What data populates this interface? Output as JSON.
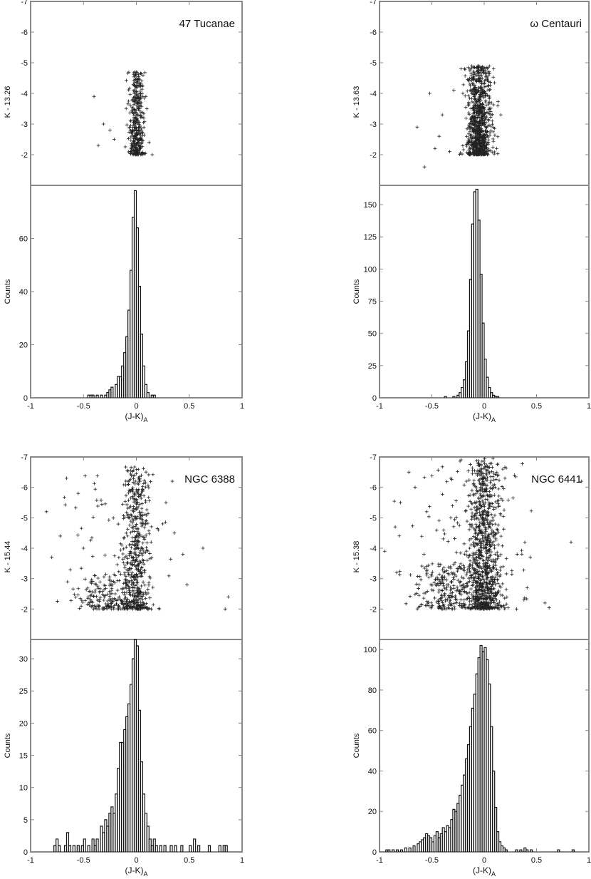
{
  "chart_data": [
    {
      "type": "scatter",
      "panel": "cmd",
      "title": "47 Tucanae",
      "ylabel": "K - 13.26",
      "xlim": [
        -1,
        1
      ],
      "ylim": [
        -1.0,
        -7.0
      ],
      "y_ticks": [
        -2,
        -3,
        -4,
        -5,
        -6,
        -7
      ],
      "y_tick_labels": [
        "-2",
        "-3",
        "-4",
        "-5",
        "-6",
        "-7"
      ],
      "marker": "+",
      "color": "#222222",
      "points_description": "dense vertical sequence near (J-K)A = 0 from K offset -2 to -4.7, with a few outliers at (-0.40,-3.9),(-0.36,-2.3),(-0.25,-2.8),(0.15,-2.0)",
      "outliers": [
        [
          -0.4,
          -3.9
        ],
        [
          -0.36,
          -2.3
        ],
        [
          -0.31,
          -3.0
        ],
        [
          -0.25,
          -2.8
        ],
        [
          -0.21,
          -2.5
        ],
        [
          0.15,
          -2.0
        ],
        [
          0.12,
          -2.4
        ],
        [
          0.09,
          -3.9
        ]
      ]
    },
    {
      "type": "bar",
      "panel": "hist",
      "xlabel": "(J-K)",
      "xlabel_sub": "A",
      "ylabel": "Counts",
      "xlim": [
        -1,
        1
      ],
      "ylim": [
        0,
        80
      ],
      "x_ticks": [
        -1,
        -0.5,
        0,
        0.5,
        1
      ],
      "x_tick_labels": [
        "-1",
        "-0.5",
        "0",
        "0.5",
        "1"
      ],
      "y_ticks": [
        0,
        20,
        40,
        60
      ],
      "y_tick_labels": [
        "0",
        "20",
        "40",
        "60"
      ],
      "bin_width": 0.02,
      "bins": [
        [
          -0.45,
          1
        ],
        [
          -0.43,
          1
        ],
        [
          -0.41,
          1
        ],
        [
          -0.37,
          1
        ],
        [
          -0.33,
          1
        ],
        [
          -0.29,
          1
        ],
        [
          -0.27,
          2
        ],
        [
          -0.25,
          3
        ],
        [
          -0.23,
          4
        ],
        [
          -0.19,
          5
        ],
        [
          -0.17,
          8
        ],
        [
          -0.15,
          8
        ],
        [
          -0.13,
          12
        ],
        [
          -0.11,
          17
        ],
        [
          -0.09,
          23
        ],
        [
          -0.07,
          33
        ],
        [
          -0.05,
          48
        ],
        [
          -0.03,
          68
        ],
        [
          -0.01,
          78
        ],
        [
          0.01,
          64
        ],
        [
          0.03,
          42
        ],
        [
          0.05,
          24
        ],
        [
          0.07,
          12
        ],
        [
          0.09,
          5
        ],
        [
          0.11,
          2
        ],
        [
          0.15,
          1
        ],
        [
          0.17,
          1
        ]
      ]
    },
    {
      "type": "scatter",
      "panel": "cmd",
      "title": "ω Centauri",
      "ylabel": "K - 13.63",
      "xlim": [
        -1,
        1
      ],
      "ylim": [
        -1.0,
        -7.0
      ],
      "y_ticks": [
        -2,
        -3,
        -4,
        -5,
        -6,
        -7
      ],
      "y_tick_labels": [
        "-2",
        "-3",
        "-4",
        "-5",
        "-6",
        "-7"
      ],
      "marker": "+",
      "color": "#222222",
      "points_description": "very dense vertical sequence near (J-K)A = -0.05 from K offset -2 to -4.9, a few outliers to the blue and red",
      "outliers": [
        [
          -0.64,
          -2.9
        ],
        [
          -0.52,
          -4.0
        ],
        [
          -0.47,
          -2.2
        ],
        [
          -0.43,
          -2.6
        ],
        [
          -0.4,
          -3.3
        ],
        [
          -0.33,
          -2.1
        ],
        [
          -0.29,
          -4.1
        ],
        [
          -0.57,
          -1.6
        ],
        [
          0.09,
          -4.8
        ],
        [
          0.16,
          -3.3
        ],
        [
          0.12,
          -2.2
        ]
      ]
    },
    {
      "type": "bar",
      "panel": "hist",
      "xlabel": "(J-K)",
      "xlabel_sub": "A",
      "ylabel": "Counts",
      "xlim": [
        -1,
        1
      ],
      "ylim": [
        0,
        165
      ],
      "x_ticks": [
        -1,
        -0.5,
        0,
        0.5,
        1
      ],
      "x_tick_labels": [
        "-1",
        "-0.5",
        "0",
        "0.5",
        "1"
      ],
      "y_ticks": [
        0,
        25,
        50,
        75,
        100,
        125,
        150
      ],
      "y_tick_labels": [
        "0",
        "25",
        "50",
        "75",
        "100",
        "125",
        "150"
      ],
      "bin_width": 0.02,
      "bins": [
        [
          -0.37,
          1
        ],
        [
          -0.29,
          1
        ],
        [
          -0.25,
          2
        ],
        [
          -0.23,
          4
        ],
        [
          -0.21,
          8
        ],
        [
          -0.19,
          14
        ],
        [
          -0.17,
          28
        ],
        [
          -0.15,
          52
        ],
        [
          -0.13,
          92
        ],
        [
          -0.11,
          135
        ],
        [
          -0.09,
          160
        ],
        [
          -0.07,
          162
        ],
        [
          -0.05,
          138
        ],
        [
          -0.03,
          96
        ],
        [
          -0.01,
          58
        ],
        [
          0.01,
          30
        ],
        [
          0.03,
          16
        ],
        [
          0.05,
          8
        ],
        [
          0.07,
          4
        ],
        [
          0.09,
          2
        ],
        [
          0.11,
          1
        ],
        [
          0.13,
          1
        ]
      ]
    },
    {
      "type": "scatter",
      "panel": "cmd",
      "title": "NGC 6388",
      "ylabel": "K - 15.44",
      "xlim": [
        -1,
        1
      ],
      "ylim": [
        -1.0,
        -7.0
      ],
      "y_ticks": [
        -2,
        -3,
        -4,
        -5,
        -6,
        -7
      ],
      "y_tick_labels": [
        "-2",
        "-3",
        "-4",
        "-5",
        "-6",
        "-7"
      ],
      "marker": "+",
      "color": "#222222",
      "points_description": "broad sequence centred near (J-K)A = 0 from K offset -2 to -6.7, blue horizontal branch near -0.45 to -0.2 at K offset -2 to -3, scattered field stars",
      "outliers": [
        [
          -0.85,
          -5.2
        ],
        [
          -0.72,
          -4.4
        ],
        [
          -0.66,
          -6.3
        ],
        [
          -0.8,
          -3.7
        ],
        [
          -0.55,
          -5.8
        ],
        [
          -0.5,
          -4.0
        ],
        [
          0.28,
          -5.5
        ],
        [
          0.25,
          -4.8
        ],
        [
          0.36,
          -4.5
        ],
        [
          0.44,
          -3.8
        ],
        [
          0.63,
          -4.0
        ],
        [
          0.87,
          -2.4
        ],
        [
          0.84,
          -2.0
        ],
        [
          0.48,
          -2.8
        ]
      ]
    },
    {
      "type": "bar",
      "panel": "hist",
      "xlabel": "(J-K)",
      "xlabel_sub": "A",
      "ylabel": "Counts",
      "xlim": [
        -1,
        1
      ],
      "ylim": [
        0,
        33
      ],
      "x_ticks": [
        -1,
        -0.5,
        0,
        0.5,
        1
      ],
      "x_tick_labels": [
        "-1",
        "-0.5",
        "0",
        "0.5",
        "1"
      ],
      "y_ticks": [
        0,
        5,
        10,
        15,
        20,
        25,
        30
      ],
      "y_tick_labels": [
        "0",
        "5",
        "10",
        "15",
        "20",
        "25",
        "30"
      ],
      "bin_width": 0.02,
      "bins": [
        [
          -0.77,
          1
        ],
        [
          -0.75,
          2
        ],
        [
          -0.73,
          1
        ],
        [
          -0.67,
          1
        ],
        [
          -0.65,
          3
        ],
        [
          -0.63,
          1
        ],
        [
          -0.59,
          1
        ],
        [
          -0.55,
          1
        ],
        [
          -0.51,
          1
        ],
        [
          -0.49,
          2
        ],
        [
          -0.45,
          1
        ],
        [
          -0.41,
          2
        ],
        [
          -0.39,
          1
        ],
        [
          -0.37,
          2
        ],
        [
          -0.33,
          4
        ],
        [
          -0.31,
          3
        ],
        [
          -0.29,
          5
        ],
        [
          -0.27,
          4
        ],
        [
          -0.25,
          6
        ],
        [
          -0.23,
          7
        ],
        [
          -0.21,
          6
        ],
        [
          -0.19,
          9
        ],
        [
          -0.17,
          13
        ],
        [
          -0.15,
          17
        ],
        [
          -0.13,
          17
        ],
        [
          -0.11,
          19
        ],
        [
          -0.09,
          21
        ],
        [
          -0.07,
          23
        ],
        [
          -0.05,
          26
        ],
        [
          -0.03,
          30
        ],
        [
          -0.01,
          33
        ],
        [
          0.01,
          32
        ],
        [
          0.03,
          22
        ],
        [
          0.05,
          14
        ],
        [
          0.07,
          9
        ],
        [
          0.09,
          6
        ],
        [
          0.11,
          4
        ],
        [
          0.13,
          2
        ],
        [
          0.15,
          1
        ],
        [
          0.17,
          2
        ],
        [
          0.19,
          1
        ],
        [
          0.23,
          1
        ],
        [
          0.27,
          1
        ],
        [
          0.33,
          1
        ],
        [
          0.37,
          1
        ],
        [
          0.43,
          1
        ],
        [
          0.51,
          1
        ],
        [
          0.55,
          2
        ],
        [
          0.59,
          1
        ],
        [
          0.69,
          1
        ],
        [
          0.79,
          1
        ],
        [
          0.83,
          1
        ],
        [
          0.85,
          1
        ]
      ]
    },
    {
      "type": "scatter",
      "panel": "cmd",
      "title": "NGC 6441",
      "ylabel": "K - 15.38",
      "xlim": [
        -1,
        1
      ],
      "ylim": [
        -1.0,
        -7.0
      ],
      "y_ticks": [
        -2,
        -3,
        -4,
        -5,
        -6,
        -7
      ],
      "y_tick_labels": [
        "-2",
        "-3",
        "-4",
        "-5",
        "-6",
        "-7"
      ],
      "marker": "+",
      "color": "#222222",
      "points_description": "very dense broad sequence near (J-K)A = 0 from K offset -2 to -7, blue horizontal branch near -0.6 to -0.2, scattered field stars",
      "outliers": [
        [
          -0.85,
          -4.7
        ],
        [
          -0.8,
          -5.5
        ],
        [
          -0.72,
          -6.5
        ],
        [
          -0.95,
          -3.9
        ],
        [
          -0.66,
          -6.0
        ],
        [
          -0.55,
          -5.2
        ],
        [
          0.36,
          -3.8
        ],
        [
          0.44,
          -3.7
        ],
        [
          0.83,
          -4.2
        ],
        [
          0.93,
          -6.2
        ],
        [
          0.41,
          -2.7
        ],
        [
          0.31,
          -2.0
        ],
        [
          0.38,
          -2.3
        ],
        [
          0.58,
          -2.2
        ]
      ]
    },
    {
      "type": "bar",
      "panel": "hist",
      "xlabel": "(J-K)",
      "xlabel_sub": "A",
      "ylabel": "Counts",
      "xlim": [
        -1,
        1
      ],
      "ylim": [
        0,
        105
      ],
      "x_ticks": [
        -1,
        -0.5,
        0,
        0.5,
        1
      ],
      "x_tick_labels": [
        "-1",
        "-0.5",
        "0",
        "0.5",
        "1"
      ],
      "y_ticks": [
        0,
        20,
        40,
        60,
        80,
        100
      ],
      "y_tick_labels": [
        "0",
        "20",
        "40",
        "60",
        "80",
        "100"
      ],
      "bin_width": 0.02,
      "bins": [
        [
          -0.93,
          1
        ],
        [
          -0.91,
          1
        ],
        [
          -0.87,
          1
        ],
        [
          -0.83,
          1
        ],
        [
          -0.79,
          1
        ],
        [
          -0.75,
          2
        ],
        [
          -0.71,
          2
        ],
        [
          -0.67,
          3
        ],
        [
          -0.63,
          4
        ],
        [
          -0.61,
          5
        ],
        [
          -0.59,
          6
        ],
        [
          -0.57,
          7
        ],
        [
          -0.55,
          9
        ],
        [
          -0.53,
          8
        ],
        [
          -0.51,
          7
        ],
        [
          -0.49,
          5
        ],
        [
          -0.47,
          8
        ],
        [
          -0.45,
          10
        ],
        [
          -0.43,
          7
        ],
        [
          -0.41,
          9
        ],
        [
          -0.39,
          12
        ],
        [
          -0.37,
          10
        ],
        [
          -0.35,
          13
        ],
        [
          -0.33,
          12
        ],
        [
          -0.31,
          16
        ],
        [
          -0.29,
          21
        ],
        [
          -0.27,
          20
        ],
        [
          -0.25,
          24
        ],
        [
          -0.23,
          28
        ],
        [
          -0.21,
          33
        ],
        [
          -0.19,
          38
        ],
        [
          -0.17,
          46
        ],
        [
          -0.15,
          53
        ],
        [
          -0.13,
          62
        ],
        [
          -0.11,
          71
        ],
        [
          -0.09,
          78
        ],
        [
          -0.07,
          88
        ],
        [
          -0.05,
          96
        ],
        [
          -0.03,
          102
        ],
        [
          -0.01,
          99
        ],
        [
          0.01,
          101
        ],
        [
          0.03,
          95
        ],
        [
          0.05,
          83
        ],
        [
          0.07,
          62
        ],
        [
          0.09,
          40
        ],
        [
          0.11,
          22
        ],
        [
          0.13,
          10
        ],
        [
          0.15,
          5
        ],
        [
          0.17,
          3
        ],
        [
          0.19,
          2
        ],
        [
          0.21,
          1
        ],
        [
          0.31,
          1
        ],
        [
          0.35,
          1
        ],
        [
          0.39,
          2
        ],
        [
          0.41,
          1
        ],
        [
          0.45,
          1
        ],
        [
          0.71,
          1
        ],
        [
          0.85,
          1
        ]
      ]
    }
  ]
}
